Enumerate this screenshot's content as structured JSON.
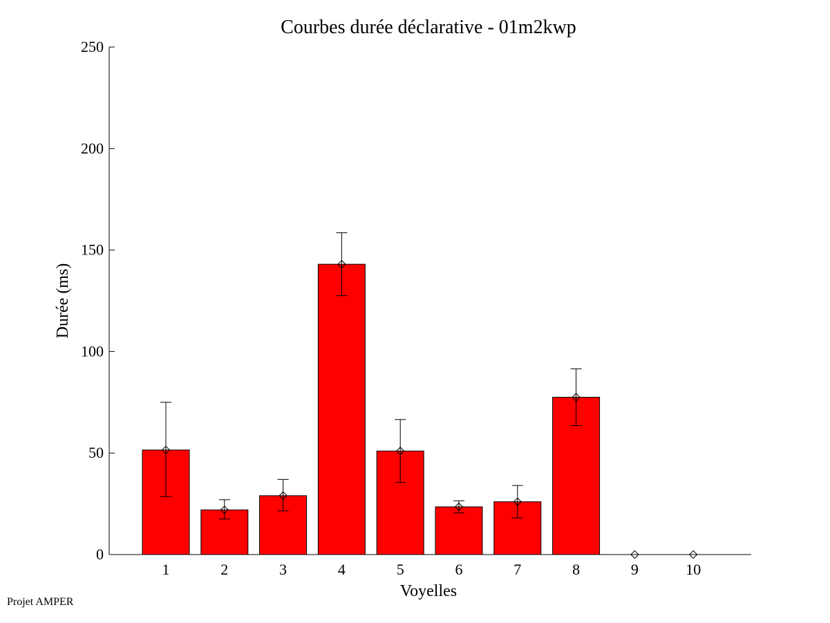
{
  "chart_data": {
    "type": "bar",
    "title": "Courbes durée déclarative - 01m2kwp",
    "xlabel": "Voyelles",
    "ylabel": "Durée (ms)",
    "categories": [
      "1",
      "2",
      "3",
      "4",
      "5",
      "6",
      "7",
      "8",
      "9",
      "10"
    ],
    "values": [
      51.5,
      22,
      29,
      143,
      51,
      23.5,
      26,
      77.5,
      0,
      0
    ],
    "error_low": [
      28.5,
      17.5,
      21.5,
      127.5,
      35.5,
      20.5,
      18,
      63.5,
      0,
      0
    ],
    "error_high": [
      75,
      27,
      37,
      158.5,
      66.5,
      26.5,
      34,
      91.5,
      0,
      0
    ],
    "ylim": [
      0,
      250
    ],
    "yticks": [
      0,
      50,
      100,
      150,
      200,
      250
    ],
    "bar_color": "#ff0000",
    "grid": false,
    "legend": "none"
  },
  "footer": {
    "credit": "Projet AMPER"
  }
}
